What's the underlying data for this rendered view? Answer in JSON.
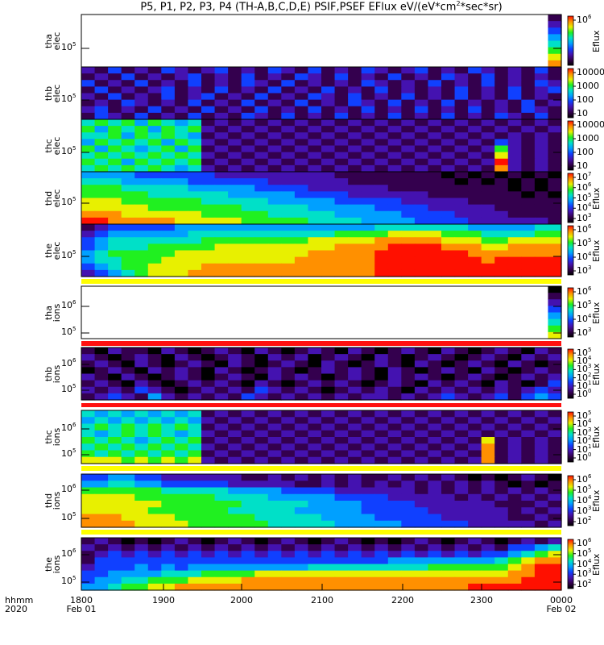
{
  "title": {
    "text": "P5, P1, P2, P3, P4 (TH-A,B,C,D,E) PSIF,PSEF EFlux eV/(eV*cm",
    "sup": "2",
    "text_end": "*sec*sr)"
  },
  "colormap": [
    "#000000",
    "#34004e",
    "#4412b0",
    "#1040ff",
    "#00a0ff",
    "#00e0c8",
    "#20f020",
    "#e8f000",
    "#ff9000",
    "#ff1000"
  ],
  "x_axis": {
    "row_labels": [
      "hhmm",
      "2020"
    ],
    "ticks": [
      {
        "time": "1800",
        "date": "Feb 01"
      },
      {
        "time": "1900",
        "date": ""
      },
      {
        "time": "2000",
        "date": ""
      },
      {
        "time": "2100",
        "date": ""
      },
      {
        "time": "2200",
        "date": ""
      },
      {
        "time": "2300",
        "date": ""
      },
      {
        "time": "0000",
        "date": "Feb 02"
      }
    ]
  },
  "chart_data": {
    "type": "heatmap",
    "title": "P5, P1, P2, P3, P4 (TH-A,B,C,D,E) PSIF,PSEF EFlux eV/(eV*cm^2*sec*sr)",
    "x_range": [
      "2020-02-01 18:00",
      "2020-02-02 00:00"
    ],
    "grid_note": "36 time bins (10 min) x 8 energy bins, top row = highest energy; digit 0-9 = colour level, '.' = no data",
    "panels": [
      {
        "probe": "tha",
        "species": "elec",
        "y_ticks": [
          {
            "b": "10",
            "e": "5"
          }
        ],
        "colorbar": {
          "label": "Eflux",
          "ticks": [
            {
              "b": "10",
              "e": "6"
            }
          ]
        },
        "grid": [
          "...................................1",
          "...................................2",
          "...................................3",
          "...................................4",
          "...................................5",
          "...................................6",
          "...................................7",
          "...................................8"
        ]
      },
      {
        "probe": "thb",
        "species": "elec",
        "y_ticks": [
          {
            "b": "10",
            "e": "5"
          }
        ],
        "colorbar": {
          "label": "",
          "ticks": [
            {
              "b": "10000",
              "e": ""
            },
            {
              "b": "1000",
              "e": ""
            },
            {
              "b": "100",
              "e": ""
            },
            {
              "b": "10",
              "e": ""
            }
          ]
        },
        "grid": [
          "213121321231213213121321231213212131",
          "121312123121312132131213121321312121",
          "312131213121321312121321213121312132",
          "131212312131213121312131212131213123",
          "213121312312131213213121312131213121",
          "121321213121312131213213121312121312",
          "231213121312131213121312131213121321",
          "132131213121321312131213121312132131"
        ]
      },
      {
        "probe": "thc",
        "species": "elec",
        "y_ticks": [
          {
            "b": "10",
            "e": "5"
          }
        ],
        "colorbar": {
          "label": "",
          "ticks": [
            {
              "b": "10000",
              "e": ""
            },
            {
              "b": "1000",
              "e": ""
            },
            {
              "b": "100",
              "e": ""
            },
            {
              "b": "10",
              "e": ""
            }
          ]
        },
        "grid": [
          "565646545121212121212121212121212121",
          "646564656212121212121212121212121212",
          "556465654121212121212121212121212121",
          "465656465212121212121212121212132121",
          "646545646121212121212121212121262121",
          "565656565212121212121212121212172121",
          "656465656121212121212121212121292121",
          "565656545212121212121212121212182121"
        ]
      },
      {
        "probe": "thd",
        "species": "elec",
        "y_ticks": [
          {
            "b": "10",
            "e": "5"
          }
        ],
        "colorbar": {
          "label": "Eflux",
          "ticks": [
            {
              "b": "10",
              "e": "7"
            },
            {
              "b": "10",
              "e": "6"
            },
            {
              "b": "10",
              "e": "5"
            },
            {
              "b": "10",
              "e": "4"
            },
            {
              "b": "10",
              "e": "3"
            }
          ]
        },
        "grid": [
          "444433333322222222211111111010101010",
          "555444443333332222221111111101010101",
          "666555554444433332222221111111110101",
          "666665555554444433332222221111111010",
          "777666666555554444433333222221111111",
          "777776666666555554444433332222211111",
          "888777777666665555544444333322221111",
          "998888877777666665555444433332222221"
        ]
      },
      {
        "probe": "the",
        "species": "elec",
        "y_ticks": [
          {
            "b": "10",
            "e": "5"
          }
        ],
        "colorbar": {
          "label": "Eflux",
          "ticks": [
            {
              "b": "10",
              "e": "6"
            },
            {
              "b": "10",
              "e": "5"
            },
            {
              "b": "10",
              "e": "4"
            },
            {
              "b": "10",
              "e": "3"
            }
          ]
        },
        "grid": [
          "123333344444444444444455555554444455",
          "234444445555555555566667777666555566",
          "345555555666666667777788888777667777",
          "345556666677777777788889999888778888",
          "456666677777777778888899999998888888",
          "455666777777777788888899999999899999",
          "345667777888888888888899999999999999",
          "234567778888888888888899999999999999"
        ]
      },
      {
        "probe": "tha",
        "species": "ions",
        "y_ticks": [
          {
            "b": "10",
            "e": "6"
          },
          {
            "b": "10",
            "e": "5"
          }
        ],
        "colorbar": {
          "label": "Eflux",
          "ticks": [
            {
              "b": "10",
              "e": "6"
            },
            {
              "b": "10",
              "e": "5"
            },
            {
              "b": "10",
              "e": "4"
            },
            {
              "b": "10",
              "e": "3"
            }
          ]
        },
        "grid": [
          "...................................0",
          "...................................1",
          "...................................2",
          "...................................3",
          "...................................4",
          "...................................5",
          "...................................6",
          "...................................7"
        ]
      },
      {
        "probe": "thb",
        "species": "ions",
        "y_ticks": [
          {
            "b": "10",
            "e": "6"
          },
          {
            "b": "10",
            "e": "5"
          }
        ],
        "colorbar": {
          "label": "Eflux",
          "ticks": [
            {
              "b": "10",
              "e": "5"
            },
            {
              "b": "10",
              "e": "4"
            },
            {
              "b": "10",
              "e": "3"
            },
            {
              "b": "10",
              "e": "2"
            },
            {
              "b": "10",
              "e": "1"
            },
            {
              "b": "10",
              "e": "0"
            }
          ]
        },
        "grid": [
          "102110210121021012102101210210121021",
          "210121021012102120121021012101210212",
          "121021012102101210210121021012102101",
          "012102121021012101212102101210210121",
          "210210121012102121012102121012101212",
          "121021012121021012121012102121021013",
          "212132101212132121012121021212121232",
          "123214212121321212121221212321231343"
        ]
      },
      {
        "probe": "thc",
        "species": "ions",
        "y_ticks": [
          {
            "b": "10",
            "e": "6"
          },
          {
            "b": "10",
            "e": "5"
          }
        ],
        "colorbar": {
          "label": "Eflux",
          "ticks": [
            {
              "b": "10",
              "e": "5"
            },
            {
              "b": "10",
              "e": "4"
            },
            {
              "b": "10",
              "e": "3"
            },
            {
              "b": "10",
              "e": "2"
            },
            {
              "b": "10",
              "e": "1"
            },
            {
              "b": "10",
              "e": "0"
            }
          ]
        },
        "grid": [
          "545454545121212121212121212121212121",
          "454545454212121212121212121212121212",
          "565656565121212121212121212121212121",
          "545656545212121212121212121212121212",
          "656545656121212121212121212121712121",
          "565656565212121212121212121212812121",
          "656565656121212121212121212121812121",
          "777676767212121212121212121212812121"
        ]
      },
      {
        "probe": "thd",
        "species": "ions",
        "y_ticks": [
          {
            "b": "10",
            "e": "6"
          },
          {
            "b": "10",
            "e": "5"
          }
        ],
        "colorbar": {
          "label": "Eflux",
          "ticks": [
            {
              "b": "10",
              "e": "6"
            },
            {
              "b": "10",
              "e": "5"
            },
            {
              "b": "10",
              "e": "4"
            },
            {
              "b": "10",
              "e": "3"
            },
            {
              "b": "10",
              "e": "2"
            }
          ]
        },
        "grid": [
          "334433222222112121212112121210101210",
          "445544333332222211212121212121210101",
          "666666555554444333322222212121212121",
          "777766666655554444433332222212121212",
          "777777666666555554444333322222211121",
          "777776666665555544444333332222221212",
          "888777766666655555444433333222221121",
          "888877776666665555544444333332222212"
        ]
      },
      {
        "probe": "the",
        "species": "ions",
        "y_ticks": [
          {
            "b": "10",
            "e": "6"
          },
          {
            "b": "10",
            "e": "5"
          }
        ],
        "colorbar": {
          "label": "Eflux",
          "ticks": [
            {
              "b": "10",
              "e": "6"
            },
            {
              "b": "10",
              "e": "5"
            },
            {
              "b": "10",
              "e": "4"
            },
            {
              "b": "10",
              "e": "3"
            },
            {
              "b": "10",
              "e": "2"
            }
          ]
        },
        "grid": [
          "121010121012101210121010121012101212",
          "212121212121212121212121212121213345",
          "123232323232323232323232323232334567",
          "133333333333333333333334444444456788",
          "233343434444444445555555556666667899",
          "334444555666677777777777777777778899",
          "344556667777888888888888888888888999",
          "445667788888888888888888888889999999"
        ]
      }
    ],
    "flag_bars": [
      {
        "after_panel": 5,
        "color": "#ffff00"
      },
      {
        "after_panel": 6,
        "color": "#ff1010"
      },
      {
        "after_panel": 7,
        "color": "#ff1010"
      },
      {
        "after_panel": 8,
        "color": "#ffff00"
      },
      {
        "after_panel": 9,
        "color": "#ffff00"
      }
    ]
  }
}
